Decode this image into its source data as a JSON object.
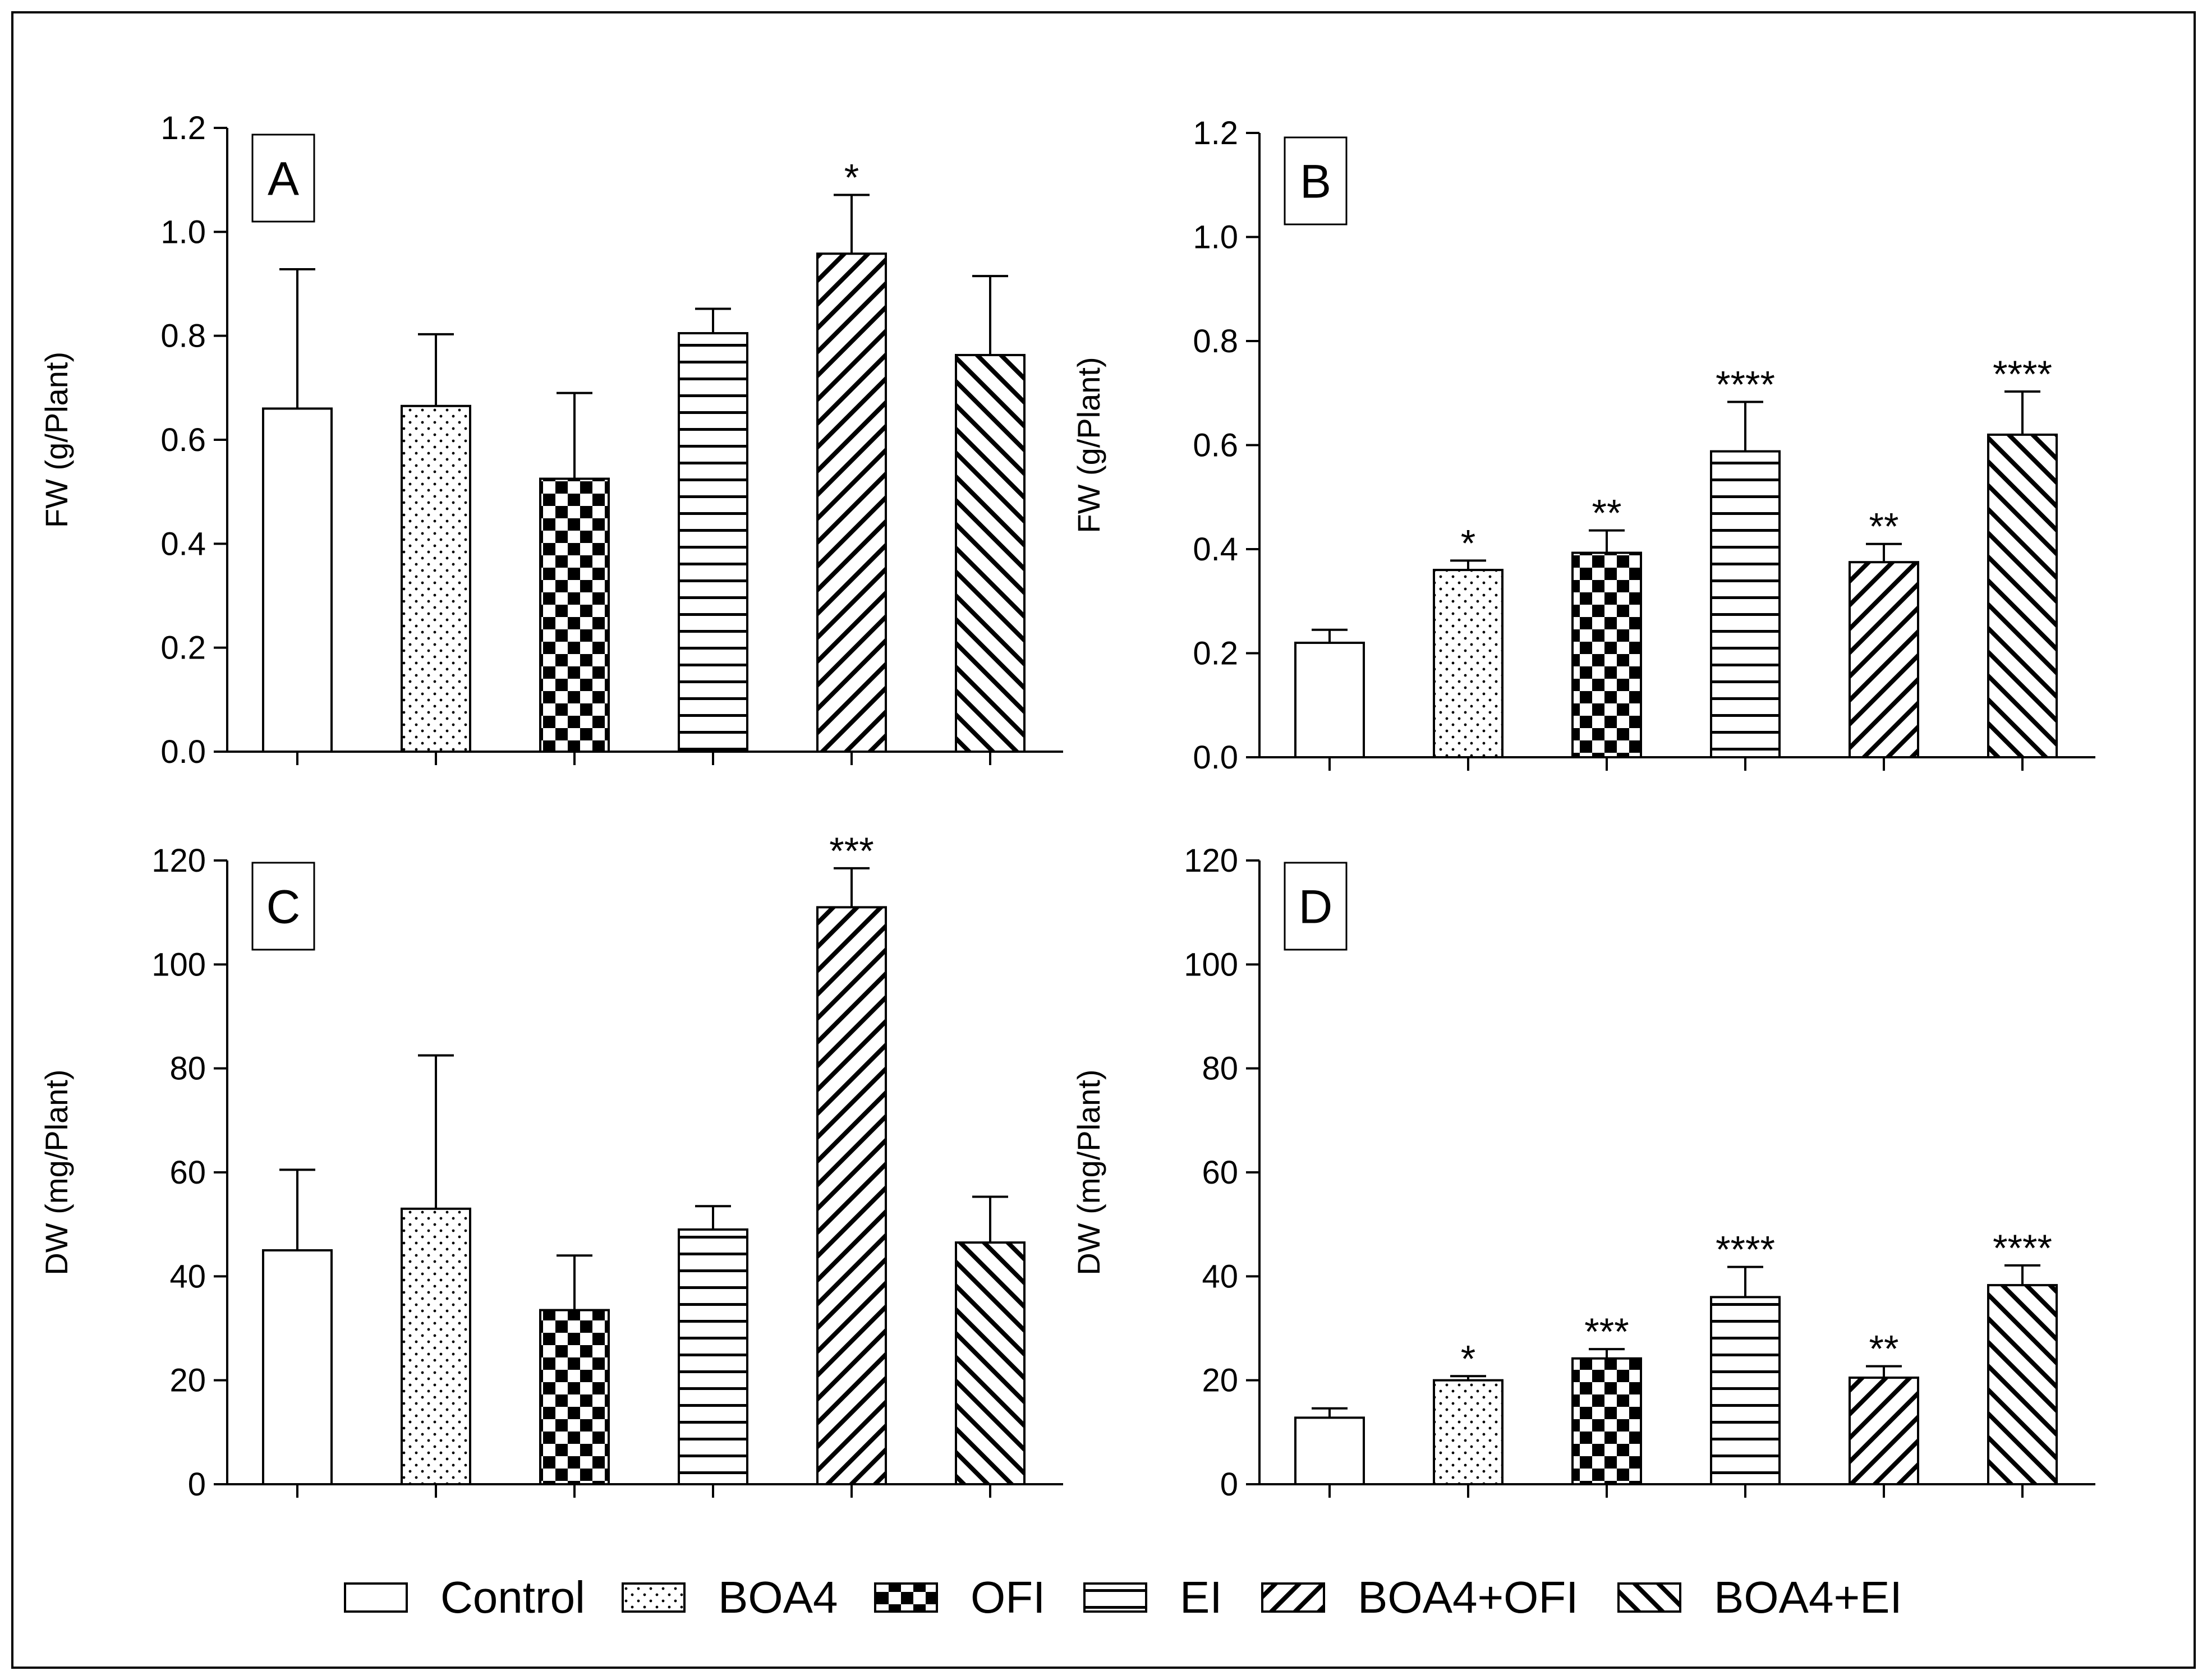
{
  "chart_data": [
    {
      "type": "bar",
      "panel": "A",
      "ylabel": "FW  (g/Plant)",
      "ylim": [
        0,
        1.2
      ],
      "yticks": [
        "0.0",
        "0.2",
        "0.4",
        "0.6",
        "0.8",
        "1.0",
        "1.2"
      ],
      "categories": [
        "Control",
        "BOA4",
        "OFI",
        "EI",
        "BOA4+OFI",
        "BOA4+EI"
      ],
      "values": [
        0.66,
        0.665,
        0.525,
        0.805,
        0.958,
        0.763
      ],
      "errors": [
        0.268,
        0.138,
        0.165,
        0.047,
        0.113,
        0.152
      ],
      "significance": [
        "",
        "",
        "",
        "",
        "*",
        ""
      ]
    },
    {
      "type": "bar",
      "panel": "B",
      "ylabel": "FW  (g/Plant)",
      "ylim": [
        0,
        1.2
      ],
      "yticks": [
        "0.0",
        "0.2",
        "0.4",
        "0.6",
        "0.8",
        "1.0",
        "1.2"
      ],
      "categories": [
        "Control",
        "BOA4",
        "OFI",
        "EI",
        "BOA4+OFI",
        "BOA4+EI"
      ],
      "values": [
        0.22,
        0.36,
        0.393,
        0.588,
        0.375,
        0.62
      ],
      "errors": [
        0.025,
        0.018,
        0.043,
        0.095,
        0.035,
        0.083
      ],
      "significance": [
        "",
        "*",
        "**",
        "****",
        "**",
        "****"
      ]
    },
    {
      "type": "bar",
      "panel": "C",
      "ylabel": "DW  (mg/Plant)",
      "ylim": [
        0,
        120
      ],
      "yticks": [
        "0",
        "20",
        "40",
        "60",
        "80",
        "100",
        "120"
      ],
      "categories": [
        "Control",
        "BOA4",
        "OFI",
        "EI",
        "BOA4+OFI",
        "BOA4+EI"
      ],
      "values": [
        45,
        53,
        33.5,
        49,
        111,
        46.5
      ],
      "errors": [
        15.5,
        29.5,
        10.5,
        4.5,
        7.5,
        8.8
      ],
      "significance": [
        "",
        "",
        "",
        "",
        "***",
        ""
      ]
    },
    {
      "type": "bar",
      "panel": "D",
      "ylabel": "DW  (mg/Plant)",
      "ylim": [
        0,
        120
      ],
      "yticks": [
        "0",
        "20",
        "40",
        "60",
        "80",
        "100",
        "120"
      ],
      "categories": [
        "Control",
        "BOA4",
        "OFI",
        "EI",
        "BOA4+OFI",
        "BOA4+EI"
      ],
      "values": [
        12.8,
        20,
        24.2,
        36,
        20.5,
        38.3
      ],
      "errors": [
        1.8,
        0.8,
        1.8,
        5.8,
        2.2,
        3.8
      ],
      "significance": [
        "",
        "*",
        "***",
        "****",
        "**",
        "****"
      ]
    }
  ],
  "legend": {
    "items": [
      {
        "label": "Control",
        "pattern": "none"
      },
      {
        "label": "BOA4",
        "pattern": "dots"
      },
      {
        "label": "OFI",
        "pattern": "checker"
      },
      {
        "label": "EI",
        "pattern": "hlines"
      },
      {
        "label": "BOA4+OFI",
        "pattern": "diag-up"
      },
      {
        "label": "BOA4+EI",
        "pattern": "diag-down"
      }
    ]
  },
  "colors": {
    "ink": "#000000",
    "background": "#ffffff"
  }
}
